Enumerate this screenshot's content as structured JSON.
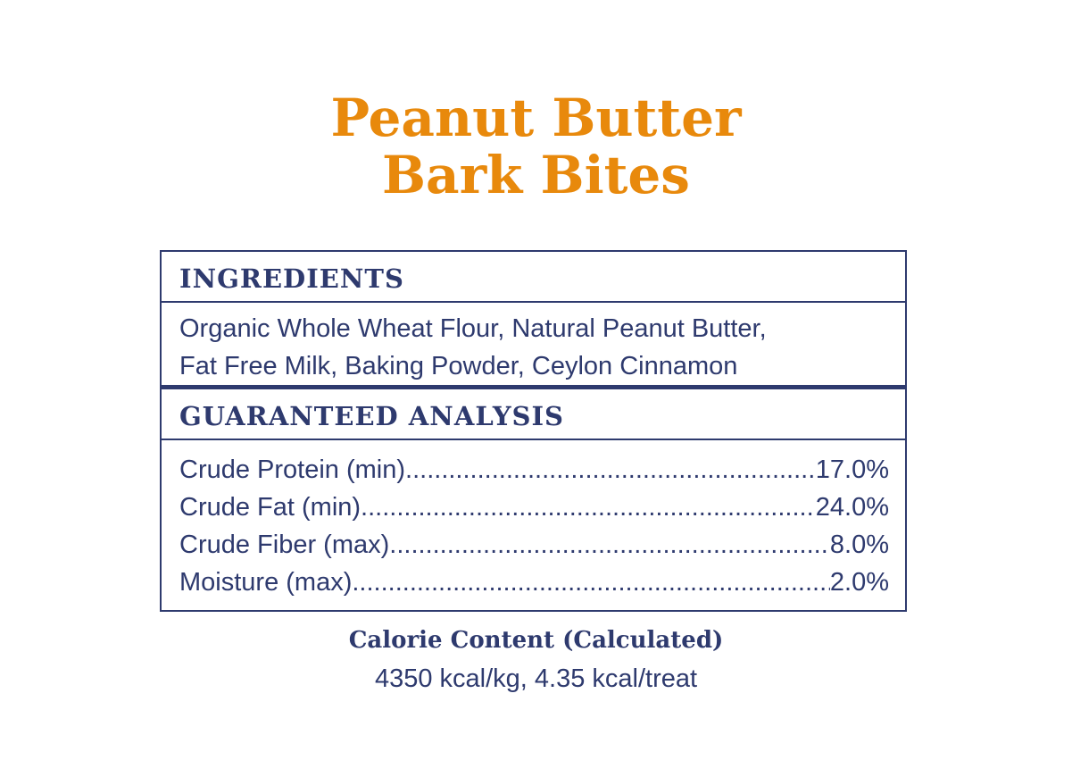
{
  "title": {
    "line1": "Peanut Butter",
    "line2": "Bark Bites"
  },
  "ingredients": {
    "heading": "INGREDIENTS",
    "line1": "Organic Whole Wheat Flour, Natural Peanut Butter,",
    "line2": "Fat Free Milk, Baking Powder, Ceylon Cinnamon"
  },
  "analysis": {
    "heading": "GUARANTEED ANALYSIS",
    "rows": [
      {
        "label": "Crude Protein (min)",
        "value": "17.0%"
      },
      {
        "label": "Crude Fat (min)",
        "value": "24.0%"
      },
      {
        "label": "Crude Fiber (max)",
        "value": "8.0%"
      },
      {
        "label": "Moisture (max)",
        "value": "2.0%"
      }
    ]
  },
  "calorie": {
    "heading": "Calorie Content (Calculated)",
    "value": "4350 kcal/kg, 4.35 kcal/treat"
  },
  "colors": {
    "title": "#e8890c",
    "text": "#2e3a6e"
  }
}
